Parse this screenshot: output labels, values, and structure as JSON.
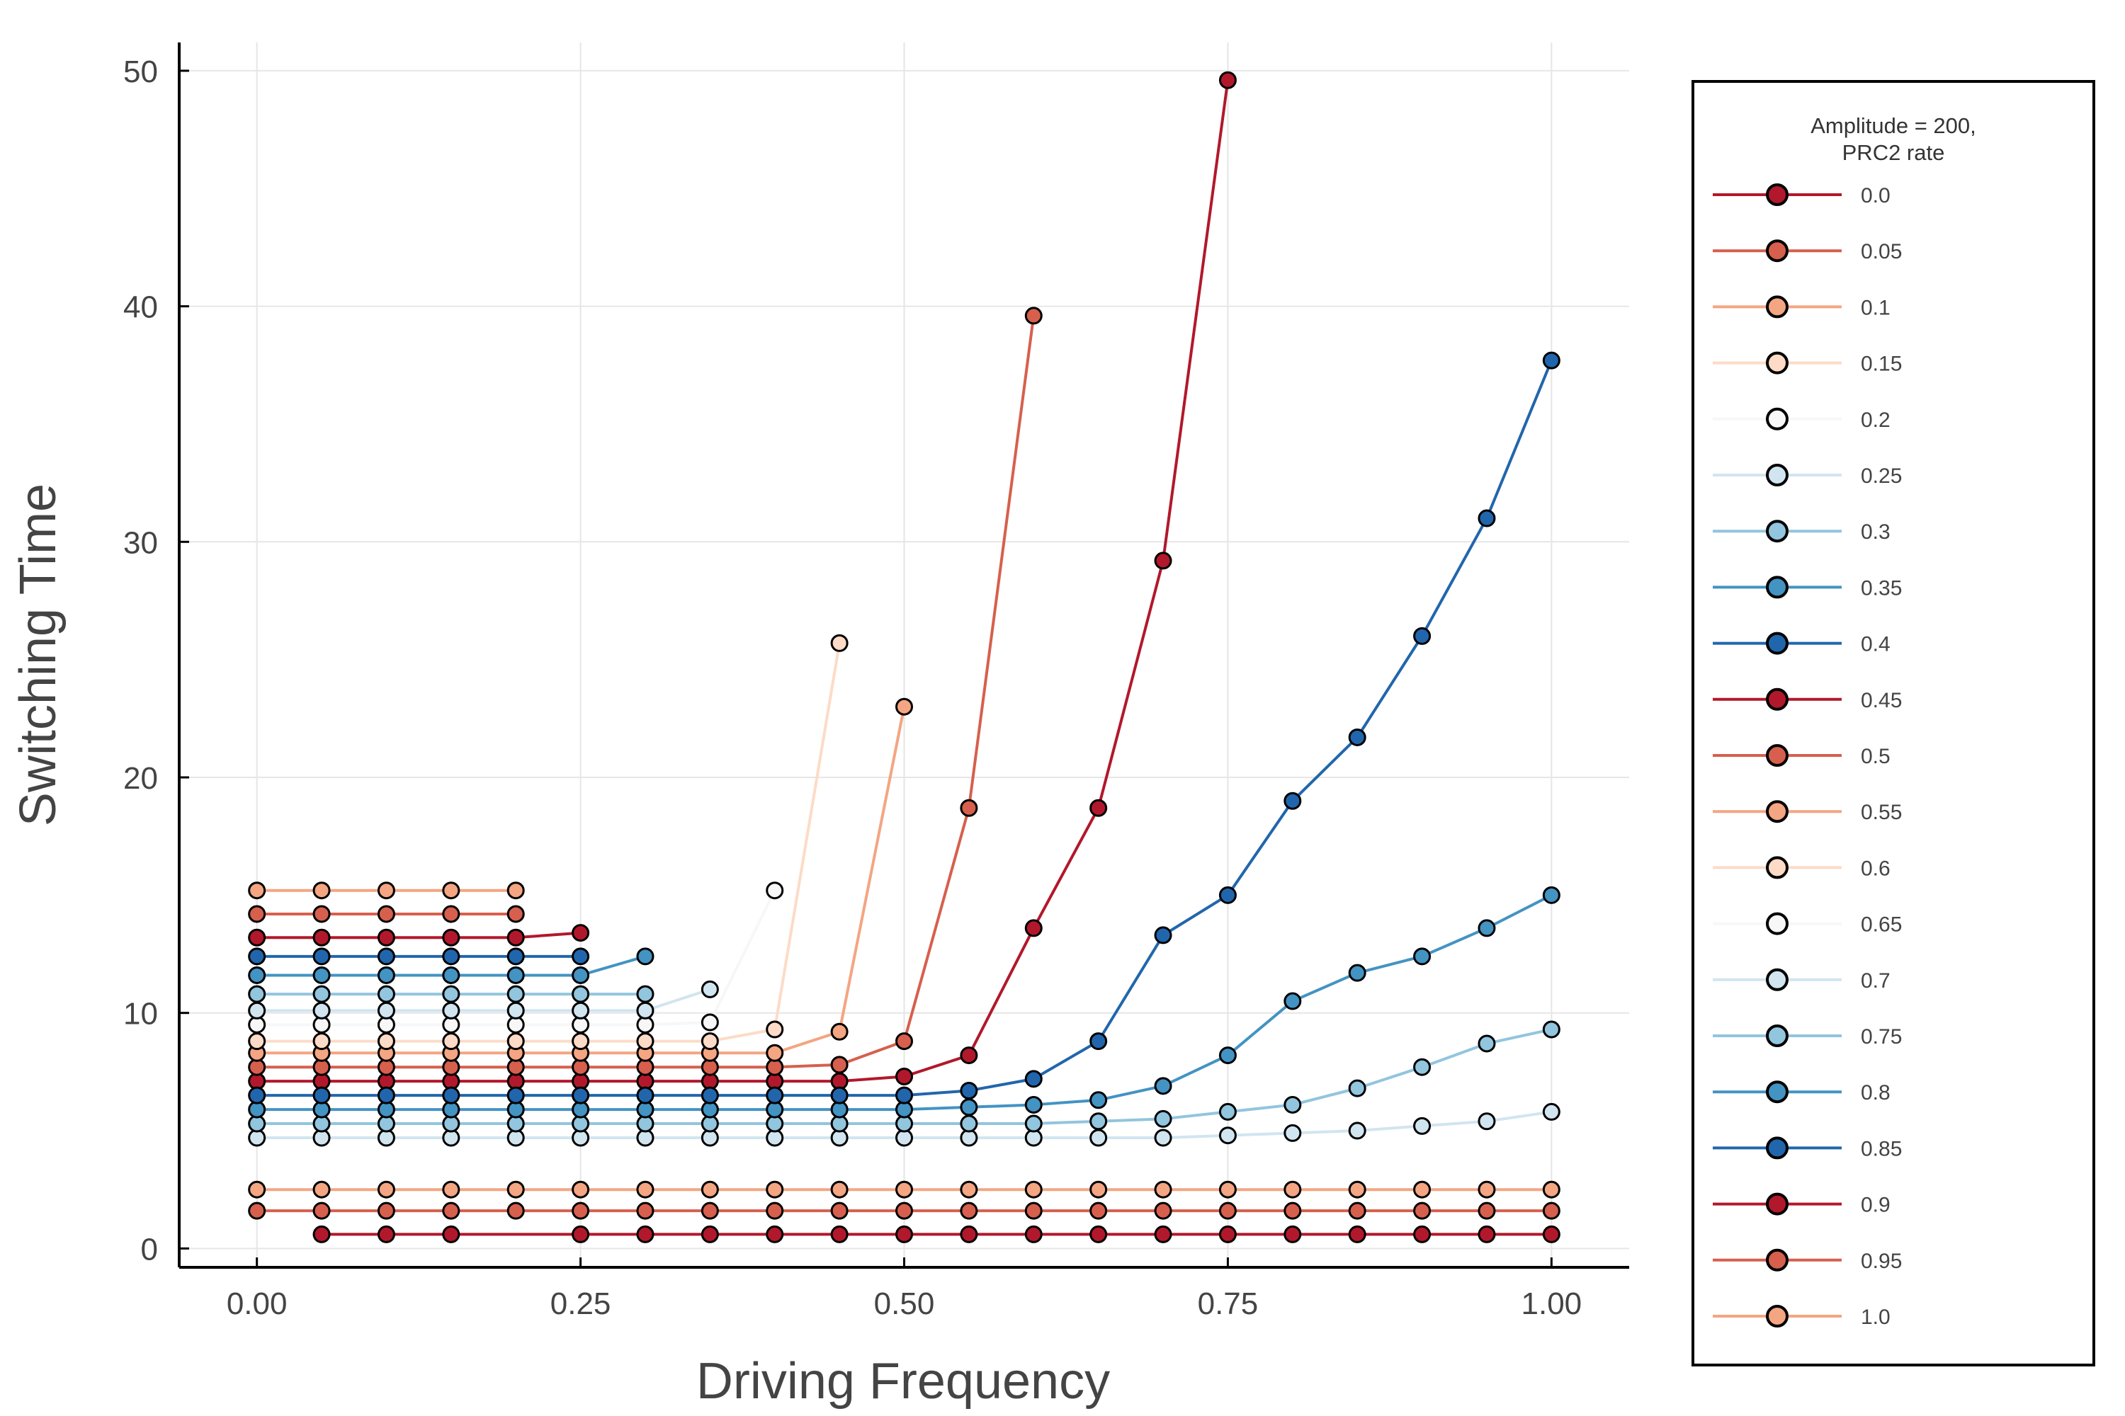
{
  "chart_data": {
    "type": "line",
    "xlabel": "Driving Frequency",
    "ylabel": "Switching Time",
    "xlim": [
      -0.06,
      1.06
    ],
    "ylim": [
      -0.8,
      51.2
    ],
    "xticks": [
      0.0,
      0.25,
      0.5,
      0.75,
      1.0
    ],
    "xtick_labels": [
      "0.00",
      "0.25",
      "0.50",
      "0.75",
      "1.00"
    ],
    "yticks": [
      0,
      10,
      20,
      30,
      40,
      50
    ],
    "ytick_labels": [
      "0",
      "10",
      "20",
      "30",
      "40",
      "50"
    ],
    "grid": true,
    "legend": {
      "placement": "right",
      "title_lines": [
        "Amplitude = 200,",
        "PRC2 rate"
      ]
    },
    "series": [
      {
        "name": "0.0",
        "color": "#b2182b",
        "x": [
          0.75,
          0.7,
          0.65,
          0.6,
          0.55,
          0.5,
          0.45,
          0.4,
          0.35,
          0.3,
          0.25,
          0.2,
          0.15,
          0.1,
          0.05,
          0.0
        ],
        "y": [
          49.6,
          29.2,
          18.7,
          13.6,
          8.2,
          7.3,
          7.1,
          7.1,
          7.1,
          7.1,
          7.1,
          7.1,
          7.1,
          7.1,
          7.1,
          7.1
        ]
      },
      {
        "name": "0.05",
        "color": "#d6604d",
        "x": [
          0.6,
          0.55,
          0.5,
          0.45,
          0.4,
          0.35,
          0.3,
          0.25,
          0.2,
          0.15,
          0.1,
          0.05,
          0.0
        ],
        "y": [
          39.6,
          18.7,
          8.8,
          7.8,
          7.7,
          7.7,
          7.7,
          7.7,
          7.7,
          7.7,
          7.7,
          7.7,
          7.7
        ]
      },
      {
        "name": "0.1",
        "color": "#f4a582",
        "x": [
          0.5,
          0.45,
          0.4,
          0.35,
          0.3,
          0.25,
          0.2,
          0.15,
          0.1,
          0.05,
          0.0
        ],
        "y": [
          23.0,
          9.2,
          8.3,
          8.3,
          8.3,
          8.3,
          8.3,
          8.3,
          8.3,
          8.3,
          8.3
        ]
      },
      {
        "name": "0.15",
        "color": "#fddbc7",
        "x": [
          0.45,
          0.4,
          0.35,
          0.3,
          0.25,
          0.2,
          0.15,
          0.1,
          0.05,
          0.0
        ],
        "y": [
          25.7,
          9.3,
          8.8,
          8.8,
          8.8,
          8.8,
          8.8,
          8.8,
          8.8,
          8.8
        ]
      },
      {
        "name": "0.2",
        "color": "#f7f7f7",
        "x": [
          0.4,
          0.35,
          0.3,
          0.25,
          0.2,
          0.15,
          0.1,
          0.05,
          0.0
        ],
        "y": [
          15.2,
          9.6,
          9.5,
          9.5,
          9.5,
          9.5,
          9.5,
          9.5,
          9.5
        ]
      },
      {
        "name": "0.25",
        "color": "#d1e5f0",
        "x": [
          0.35,
          0.3,
          0.25,
          0.2,
          0.15,
          0.1,
          0.05,
          0.0
        ],
        "y": [
          11.0,
          10.1,
          10.1,
          10.1,
          10.1,
          10.1,
          10.1,
          10.1
        ]
      },
      {
        "name": "0.3",
        "color": "#92c5de",
        "x": [
          0.3,
          0.25,
          0.2,
          0.15,
          0.1,
          0.05,
          0.0
        ],
        "y": [
          10.8,
          10.8,
          10.8,
          10.8,
          10.8,
          10.8,
          10.8
        ]
      },
      {
        "name": "0.35",
        "color": "#4393c3",
        "x": [
          0.3,
          0.25,
          0.2,
          0.15,
          0.1,
          0.05,
          0.0
        ],
        "y": [
          12.4,
          11.6,
          11.6,
          11.6,
          11.6,
          11.6,
          11.6
        ]
      },
      {
        "name": "0.4",
        "color": "#2166ac",
        "x": [
          0.25,
          0.2,
          0.15,
          0.1,
          0.05,
          0.0
        ],
        "y": [
          12.4,
          12.4,
          12.4,
          12.4,
          12.4,
          12.4
        ]
      },
      {
        "name": "0.45",
        "color": "#b2182b",
        "x": [
          0.25,
          0.2,
          0.15,
          0.1,
          0.05,
          0.0
        ],
        "y": [
          13.4,
          13.2,
          13.2,
          13.2,
          13.2,
          13.2
        ]
      },
      {
        "name": "0.5",
        "color": "#d6604d",
        "x": [
          0.2,
          0.15,
          0.1,
          0.05,
          0.0
        ],
        "y": [
          14.2,
          14.2,
          14.2,
          14.2,
          14.2
        ]
      },
      {
        "name": "0.55",
        "color": "#f4a582",
        "x": [
          0.2,
          0.15,
          0.1,
          0.05,
          0.0
        ],
        "y": [
          15.2,
          15.2,
          15.2,
          15.2,
          15.2
        ]
      },
      {
        "name": "0.6",
        "color": "#fddbc7",
        "x": [],
        "y": []
      },
      {
        "name": "0.65",
        "color": "#f7f7f7",
        "x": [],
        "y": []
      },
      {
        "name": "0.7",
        "color": "#d1e5f0",
        "x": [
          0.0,
          0.05,
          0.1,
          0.15,
          0.2,
          0.25,
          0.3,
          0.35,
          0.4,
          0.45,
          0.5,
          0.55,
          0.6,
          0.65,
          0.7,
          0.75,
          0.8,
          0.85,
          0.9,
          0.95,
          1.0
        ],
        "y": [
          4.7,
          4.7,
          4.7,
          4.7,
          4.7,
          4.7,
          4.7,
          4.7,
          4.7,
          4.7,
          4.7,
          4.7,
          4.7,
          4.7,
          4.7,
          4.8,
          4.9,
          5.0,
          5.2,
          5.4,
          5.8
        ]
      },
      {
        "name": "0.75",
        "color": "#92c5de",
        "x": [
          0.0,
          0.05,
          0.1,
          0.15,
          0.2,
          0.25,
          0.3,
          0.35,
          0.4,
          0.45,
          0.5,
          0.55,
          0.6,
          0.65,
          0.7,
          0.75,
          0.8,
          0.85,
          0.9,
          0.95,
          1.0
        ],
        "y": [
          5.3,
          5.3,
          5.3,
          5.3,
          5.3,
          5.3,
          5.3,
          5.3,
          5.3,
          5.3,
          5.3,
          5.3,
          5.3,
          5.4,
          5.5,
          5.8,
          6.1,
          6.8,
          7.7,
          8.7,
          9.3
        ]
      },
      {
        "name": "0.8",
        "color": "#4393c3",
        "x": [
          0.0,
          0.05,
          0.1,
          0.15,
          0.2,
          0.25,
          0.3,
          0.35,
          0.4,
          0.45,
          0.5,
          0.55,
          0.6,
          0.65,
          0.7,
          0.75,
          0.8,
          0.85,
          0.9,
          0.95,
          1.0
        ],
        "y": [
          5.9,
          5.9,
          5.9,
          5.9,
          5.9,
          5.9,
          5.9,
          5.9,
          5.9,
          5.9,
          5.9,
          6.0,
          6.1,
          6.3,
          6.9,
          8.2,
          10.5,
          11.7,
          12.4,
          13.6,
          15.0
        ]
      },
      {
        "name": "0.85",
        "color": "#2166ac",
        "x": [
          0.0,
          0.05,
          0.1,
          0.15,
          0.2,
          0.25,
          0.3,
          0.35,
          0.4,
          0.45,
          0.5,
          0.55,
          0.6,
          0.65,
          0.7,
          0.75,
          0.8,
          0.85,
          0.9,
          0.95,
          1.0
        ],
        "y": [
          6.5,
          6.5,
          6.5,
          6.5,
          6.5,
          6.5,
          6.5,
          6.5,
          6.5,
          6.5,
          6.5,
          6.7,
          7.2,
          8.8,
          13.3,
          15.0,
          19.0,
          21.7,
          26.0,
          31.0,
          37.7
        ]
      },
      {
        "name": "0.9",
        "color": "#b2182b",
        "x": [
          0.05,
          0.1,
          0.15,
          0.25,
          0.3,
          0.35,
          0.4,
          0.45,
          0.5,
          0.55,
          0.6,
          0.65,
          0.7,
          0.75,
          0.8,
          0.85,
          0.9,
          0.95,
          1.0
        ],
        "y": [
          0.6,
          0.6,
          0.6,
          0.6,
          0.6,
          0.6,
          0.6,
          0.6,
          0.6,
          0.6,
          0.6,
          0.6,
          0.6,
          0.6,
          0.6,
          0.6,
          0.6,
          0.6,
          0.6
        ]
      },
      {
        "name": "0.95",
        "color": "#d6604d",
        "x": [
          0.0,
          0.05,
          0.1,
          0.15,
          0.2,
          0.25,
          0.3,
          0.35,
          0.4,
          0.45,
          0.5,
          0.55,
          0.6,
          0.65,
          0.7,
          0.75,
          0.8,
          0.85,
          0.9,
          0.95,
          1.0
        ],
        "y": [
          1.6,
          1.6,
          1.6,
          1.6,
          1.6,
          1.6,
          1.6,
          1.6,
          1.6,
          1.6,
          1.6,
          1.6,
          1.6,
          1.6,
          1.6,
          1.6,
          1.6,
          1.6,
          1.6,
          1.6,
          1.6
        ]
      },
      {
        "name": "1.0",
        "color": "#f4a582",
        "x": [
          0.0,
          0.05,
          0.1,
          0.15,
          0.2,
          0.25,
          0.3,
          0.35,
          0.4,
          0.45,
          0.5,
          0.55,
          0.6,
          0.65,
          0.7,
          0.75,
          0.8,
          0.85,
          0.9,
          0.95,
          1.0
        ],
        "y": [
          2.5,
          2.5,
          2.5,
          2.5,
          2.5,
          2.5,
          2.5,
          2.5,
          2.5,
          2.5,
          2.5,
          2.5,
          2.5,
          2.5,
          2.5,
          2.5,
          2.5,
          2.5,
          2.5,
          2.5,
          2.5
        ]
      }
    ]
  }
}
